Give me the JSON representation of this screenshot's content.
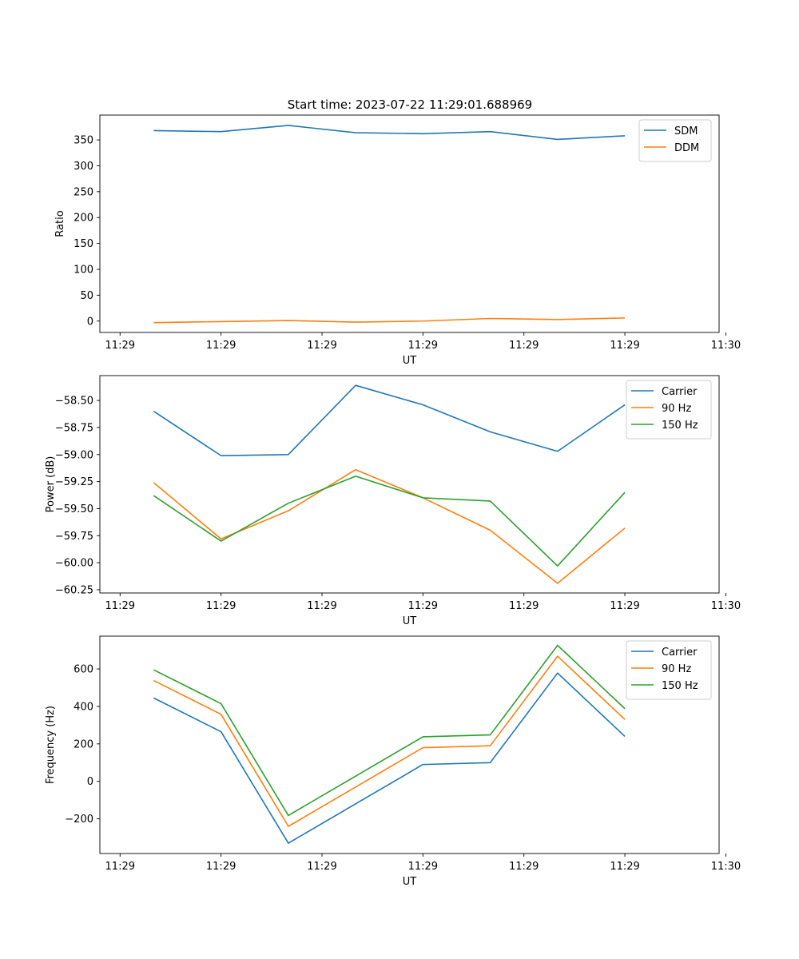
{
  "figure": {
    "title": "Start time: 2023-07-22 11:29:01.688969"
  },
  "colors": {
    "blue": "#1f77b4",
    "orange": "#ff7f0e",
    "green": "#2ca02c"
  },
  "chart_data": [
    {
      "type": "line",
      "title": "Start time: 2023-07-22 11:29:01.688969",
      "xlabel": "UT",
      "ylabel": "Ratio",
      "x": [
        1,
        2,
        3,
        4,
        5,
        6,
        7,
        8
      ],
      "xlim": [
        0.2,
        9.4
      ],
      "xticks": [
        {
          "v": 0.5,
          "label": "11:29"
        },
        {
          "v": 2.0,
          "label": "11:29"
        },
        {
          "v": 3.5,
          "label": "11:29"
        },
        {
          "v": 5.0,
          "label": "11:29"
        },
        {
          "v": 6.5,
          "label": "11:29"
        },
        {
          "v": 8.0,
          "label": "11:29"
        },
        {
          "v": 9.5,
          "label": "11:30"
        }
      ],
      "ylim": [
        -22,
        398
      ],
      "yticks": [
        {
          "v": 0,
          "label": "0"
        },
        {
          "v": 50,
          "label": "50"
        },
        {
          "v": 100,
          "label": "100"
        },
        {
          "v": 150,
          "label": "150"
        },
        {
          "v": 200,
          "label": "200"
        },
        {
          "v": 250,
          "label": "250"
        },
        {
          "v": 300,
          "label": "300"
        },
        {
          "v": 350,
          "label": "350"
        }
      ],
      "legend": "top-right",
      "series": [
        {
          "name": "SDM",
          "color": "#1f77b4",
          "values": [
            368,
            366,
            378,
            364,
            362,
            366,
            351,
            358
          ]
        },
        {
          "name": "DDM",
          "color": "#ff7f0e",
          "values": [
            -3,
            -1,
            1,
            -2,
            0,
            5,
            3,
            6
          ]
        }
      ]
    },
    {
      "type": "line",
      "title": "",
      "xlabel": "UT",
      "ylabel": "Power (dB)",
      "x": [
        1,
        2,
        3,
        4,
        5,
        6,
        7,
        8
      ],
      "xlim": [
        0.2,
        9.4
      ],
      "xticks": [
        {
          "v": 0.5,
          "label": "11:29"
        },
        {
          "v": 2.0,
          "label": "11:29"
        },
        {
          "v": 3.5,
          "label": "11:29"
        },
        {
          "v": 5.0,
          "label": "11:29"
        },
        {
          "v": 6.5,
          "label": "11:29"
        },
        {
          "v": 8.0,
          "label": "11:29"
        },
        {
          "v": 9.5,
          "label": "11:30"
        }
      ],
      "ylim": [
        -60.28,
        -58.27
      ],
      "yticks": [
        {
          "v": -60.25,
          "label": "−60.25"
        },
        {
          "v": -60.0,
          "label": "−60.00"
        },
        {
          "v": -59.75,
          "label": "−59.75"
        },
        {
          "v": -59.5,
          "label": "−59.50"
        },
        {
          "v": -59.25,
          "label": "−59.25"
        },
        {
          "v": -59.0,
          "label": "−59.00"
        },
        {
          "v": -58.75,
          "label": "−58.75"
        },
        {
          "v": -58.5,
          "label": "−58.50"
        }
      ],
      "legend": "top-right",
      "series": [
        {
          "name": "Carrier",
          "color": "#1f77b4",
          "values": [
            -58.6,
            -59.01,
            -59.0,
            -58.36,
            -58.54,
            -58.79,
            -58.97,
            -58.54
          ]
        },
        {
          "name": "90 Hz",
          "color": "#ff7f0e",
          "values": [
            -59.26,
            -59.78,
            -59.52,
            -59.14,
            -59.4,
            -59.7,
            -60.19,
            -59.68
          ]
        },
        {
          "name": "150 Hz",
          "color": "#2ca02c",
          "values": [
            -59.38,
            -59.8,
            -59.45,
            -59.2,
            -59.4,
            -59.43,
            -60.03,
            -59.35
          ]
        }
      ]
    },
    {
      "type": "line",
      "title": "",
      "xlabel": "UT",
      "ylabel": "Frequency (Hz)",
      "x": [
        1,
        2,
        3,
        4,
        5,
        6,
        7,
        8
      ],
      "xlim": [
        0.2,
        9.4
      ],
      "xticks": [
        {
          "v": 0.5,
          "label": "11:29"
        },
        {
          "v": 2.0,
          "label": "11:29"
        },
        {
          "v": 3.5,
          "label": "11:29"
        },
        {
          "v": 5.0,
          "label": "11:29"
        },
        {
          "v": 6.5,
          "label": "11:29"
        },
        {
          "v": 8.0,
          "label": "11:29"
        },
        {
          "v": 9.5,
          "label": "11:30"
        }
      ],
      "ylim": [
        -385,
        775
      ],
      "yticks": [
        {
          "v": -200,
          "label": "−200"
        },
        {
          "v": 0,
          "label": "0"
        },
        {
          "v": 200,
          "label": "200"
        },
        {
          "v": 400,
          "label": "400"
        },
        {
          "v": 600,
          "label": "600"
        }
      ],
      "legend": "top-right",
      "series": [
        {
          "name": "Carrier",
          "color": "#1f77b4",
          "values": [
            445,
            265,
            -330,
            -120,
            90,
            100,
            578,
            240
          ]
        },
        {
          "name": "90 Hz",
          "color": "#ff7f0e",
          "values": [
            538,
            358,
            -240,
            -30,
            180,
            190,
            668,
            330
          ]
        },
        {
          "name": "150 Hz",
          "color": "#2ca02c",
          "values": [
            595,
            415,
            -182,
            28,
            238,
            248,
            726,
            388
          ]
        }
      ]
    }
  ]
}
